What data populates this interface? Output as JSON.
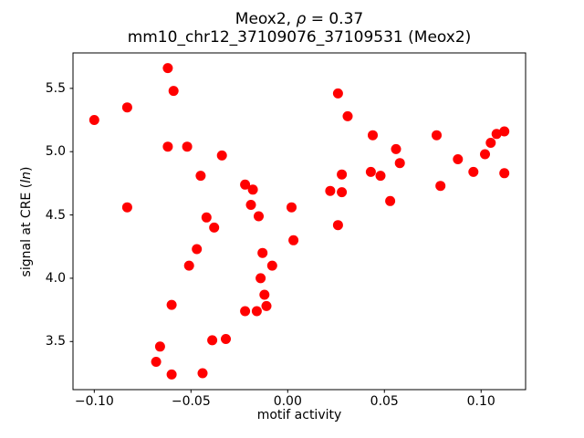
{
  "chart_data": {
    "type": "scatter",
    "title": "Meox2, ρ = 0.37",
    "title_parts": {
      "prefix": "Meox2, ",
      "rho_italic": "ρ",
      "suffix": " = 0.37"
    },
    "subtitle": "mm10_chr12_37109076_37109531 (Meox2)",
    "xlabel": "motif activity",
    "ylabel": "signal at CRE (ln)",
    "ylabel_parts": {
      "prefix": "signal at CRE (",
      "italic": "ln",
      "suffix": ")"
    },
    "background_color": "#ffffff",
    "axes_color": "#000000",
    "marker": {
      "color": "#ff0000",
      "radius_px": 5.5
    },
    "grid": false,
    "legend": null,
    "xlim": [
      -0.111,
      0.123
    ],
    "ylim": [
      3.12,
      5.78
    ],
    "xticks": {
      "values": [
        -0.1,
        -0.05,
        0.0,
        0.05,
        0.1
      ],
      "labels": [
        "−0.10",
        "−0.05",
        "0.00",
        "0.05",
        "0.10"
      ]
    },
    "yticks": {
      "values": [
        3.5,
        4.0,
        4.5,
        5.0,
        5.5
      ],
      "labels": [
        "3.5",
        "4.0",
        "4.5",
        "5.0",
        "5.5"
      ]
    },
    "points": [
      [
        -0.1,
        5.25
      ],
      [
        -0.083,
        5.35
      ],
      [
        -0.083,
        4.56
      ],
      [
        -0.062,
        5.66
      ],
      [
        -0.059,
        5.48
      ],
      [
        -0.062,
        5.04
      ],
      [
        -0.052,
        5.04
      ],
      [
        -0.045,
        4.81
      ],
      [
        -0.034,
        4.97
      ],
      [
        -0.042,
        4.48
      ],
      [
        -0.038,
        4.4
      ],
      [
        -0.047,
        4.23
      ],
      [
        -0.051,
        4.1
      ],
      [
        -0.06,
        3.79
      ],
      [
        -0.066,
        3.46
      ],
      [
        -0.068,
        3.34
      ],
      [
        -0.06,
        3.24
      ],
      [
        -0.044,
        3.25
      ],
      [
        -0.039,
        3.51
      ],
      [
        -0.032,
        3.52
      ],
      [
        -0.022,
        4.74
      ],
      [
        -0.018,
        4.7
      ],
      [
        -0.019,
        4.58
      ],
      [
        -0.015,
        4.49
      ],
      [
        -0.013,
        4.2
      ],
      [
        -0.008,
        4.1
      ],
      [
        -0.014,
        4.0
      ],
      [
        -0.012,
        3.87
      ],
      [
        -0.011,
        3.78
      ],
      [
        -0.016,
        3.74
      ],
      [
        -0.022,
        3.74
      ],
      [
        0.002,
        4.56
      ],
      [
        0.003,
        4.3
      ],
      [
        0.022,
        4.69
      ],
      [
        0.028,
        4.68
      ],
      [
        0.026,
        4.42
      ],
      [
        0.026,
        5.46
      ],
      [
        0.031,
        5.28
      ],
      [
        0.028,
        4.82
      ],
      [
        0.044,
        5.13
      ],
      [
        0.043,
        4.84
      ],
      [
        0.048,
        4.81
      ],
      [
        0.056,
        5.02
      ],
      [
        0.058,
        4.91
      ],
      [
        0.053,
        4.61
      ],
      [
        0.077,
        5.13
      ],
      [
        0.079,
        4.73
      ],
      [
        0.088,
        4.94
      ],
      [
        0.096,
        4.84
      ],
      [
        0.102,
        4.98
      ],
      [
        0.105,
        5.07
      ],
      [
        0.108,
        5.14
      ],
      [
        0.112,
        5.16
      ],
      [
        0.112,
        4.83
      ]
    ]
  }
}
